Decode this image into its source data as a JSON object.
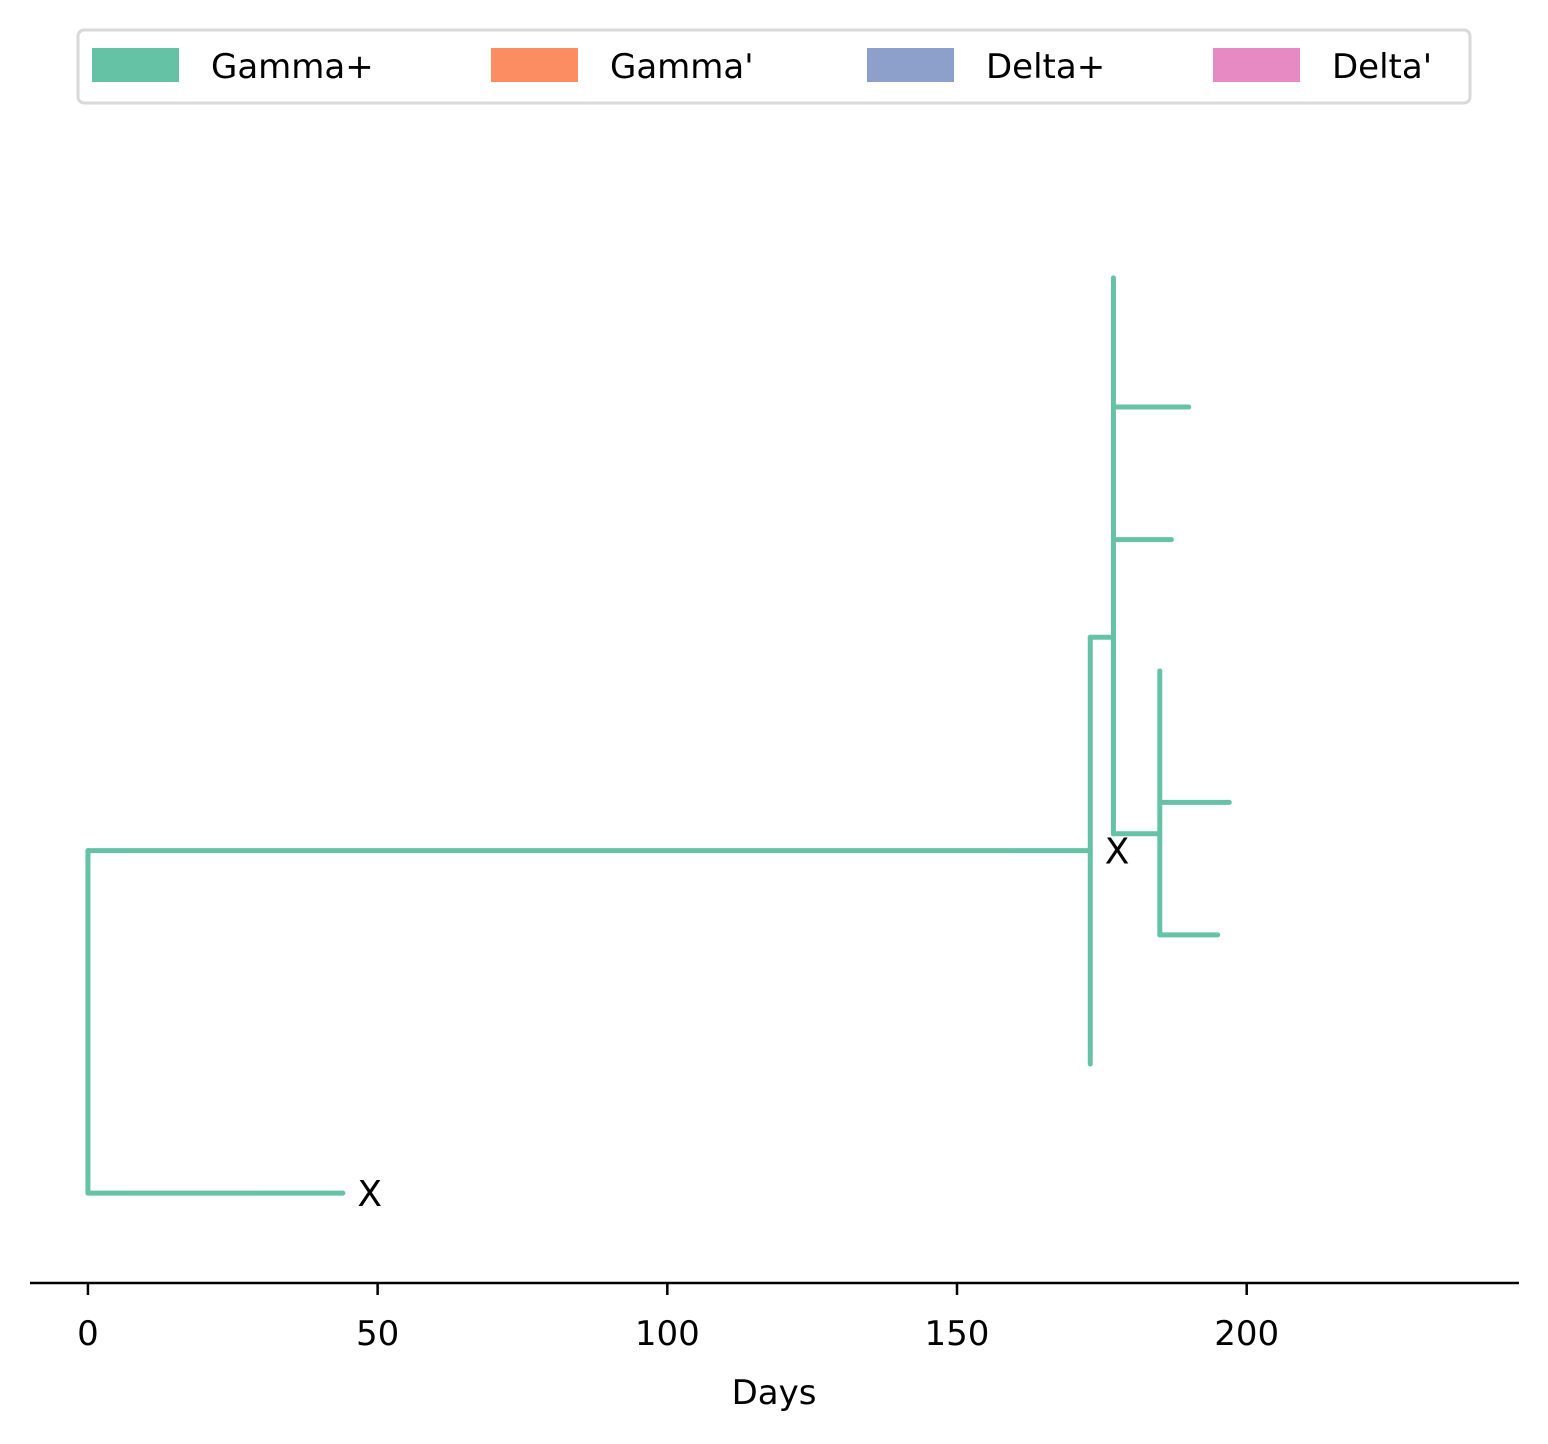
{
  "chart_data": {
    "type": "tree",
    "title": "",
    "xlabel": "Days",
    "ylabel": "",
    "xlim": [
      -10,
      247
    ],
    "ylim": [
      0,
      10
    ],
    "grid": false,
    "legend_position": "top",
    "legend": [
      {
        "label": "Gamma+",
        "color": "#66c2a5"
      },
      {
        "label": "Gamma'",
        "color": "#fc8d62"
      },
      {
        "label": "Delta+",
        "color": "#8da0cb"
      },
      {
        "label": "Delta'",
        "color": "#e78ac3"
      }
    ],
    "x_ticks": [
      {
        "value": 0,
        "label": "0"
      },
      {
        "value": 50,
        "label": "50"
      },
      {
        "value": 100,
        "label": "100"
      },
      {
        "value": 150,
        "label": "150"
      },
      {
        "value": 200,
        "label": "200"
      }
    ],
    "branches": [
      {
        "id": "root-vertical",
        "x1": 0,
        "y1": 0.8,
        "x2": 0,
        "y2": 3.85,
        "color": "#66c2a5"
      },
      {
        "id": "root-to-lower-leaf",
        "x1": 0,
        "y1": 0.8,
        "x2": 44,
        "y2": 0.8,
        "color": "#66c2a5"
      },
      {
        "id": "root-to-main-node",
        "x1": 0,
        "y1": 3.85,
        "x2": 173,
        "y2": 3.85,
        "color": "#66c2a5"
      },
      {
        "id": "main-node-vertical",
        "x1": 173,
        "y1": 1.95,
        "x2": 173,
        "y2": 5.75,
        "color": "#66c2a5"
      },
      {
        "id": "main-to-upper-node",
        "x1": 173,
        "y1": 5.75,
        "x2": 177,
        "y2": 5.75,
        "color": "#66c2a5"
      },
      {
        "id": "upper-node-vertical",
        "x1": 177,
        "y1": 4.0,
        "x2": 177,
        "y2": 8.95,
        "color": "#66c2a5"
      },
      {
        "id": "upper-leaf-a",
        "x1": 177,
        "y1": 7.8,
        "x2": 190,
        "y2": 7.8,
        "color": "#66c2a5"
      },
      {
        "id": "upper-leaf-b",
        "x1": 177,
        "y1": 6.62,
        "x2": 187,
        "y2": 6.62,
        "color": "#66c2a5"
      },
      {
        "id": "upper-to-lower-node",
        "x1": 177,
        "y1": 4.0,
        "x2": 185,
        "y2": 4.0,
        "color": "#66c2a5"
      },
      {
        "id": "lower-node-vertical",
        "x1": 185,
        "y1": 3.1,
        "x2": 185,
        "y2": 5.45,
        "color": "#66c2a5"
      },
      {
        "id": "lower-leaf-a",
        "x1": 185,
        "y1": 4.28,
        "x2": 197,
        "y2": 4.28,
        "color": "#66c2a5"
      },
      {
        "id": "lower-leaf-b",
        "x1": 185,
        "y1": 3.1,
        "x2": 195,
        "y2": 3.1,
        "color": "#66c2a5"
      }
    ],
    "markers": [
      {
        "id": "marker-lower",
        "label": "X",
        "x": 46.5,
        "y": 0.8
      },
      {
        "id": "marker-main",
        "label": "X",
        "x": 175.5,
        "y": 3.85
      }
    ]
  }
}
